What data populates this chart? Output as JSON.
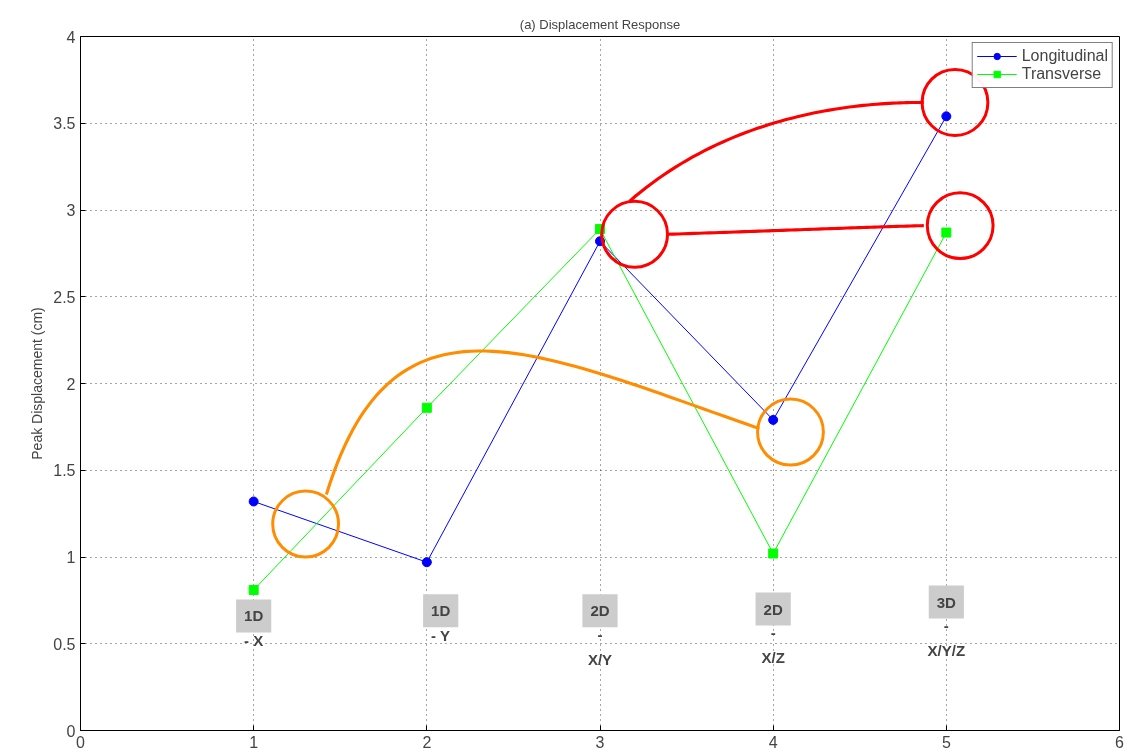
{
  "chart_data": {
    "type": "line",
    "title": "(a) Displacement Response",
    "ylabel": "Peak Displacement (cm)",
    "x": [
      1,
      2,
      3,
      4,
      5
    ],
    "series": [
      {
        "name": "Longitudinal",
        "color": "#0000ff",
        "marker": "circle",
        "values": [
          1.32,
          0.97,
          2.82,
          1.79,
          3.54
        ]
      },
      {
        "name": "Transverse",
        "color": "#00ff00",
        "marker": "square",
        "values": [
          0.81,
          1.86,
          2.89,
          1.02,
          2.87
        ]
      }
    ],
    "annotations": [
      {
        "text": "1D\n- X",
        "x": 1,
        "y": 0.66
      },
      {
        "text": "1D\n- Y",
        "x": 2.08,
        "y": 0.69
      },
      {
        "text": "2D\n-\nX/Y",
        "x": 3,
        "y": 0.69
      },
      {
        "text": "2D\n-\nX/Z",
        "x": 4,
        "y": 0.7
      },
      {
        "text": "3D\n-\nX/Y/Z",
        "x": 5,
        "y": 0.74
      }
    ],
    "xlim": [
      0,
      6
    ],
    "xticks": [
      0,
      1,
      2,
      3,
      4,
      5,
      6
    ],
    "ylim": [
      0,
      4
    ],
    "yticks": [
      0,
      0.5,
      1,
      1.5,
      2,
      2.5,
      3,
      3.5,
      4
    ],
    "grid": true,
    "legend": "top right",
    "line_style": "solid"
  }
}
